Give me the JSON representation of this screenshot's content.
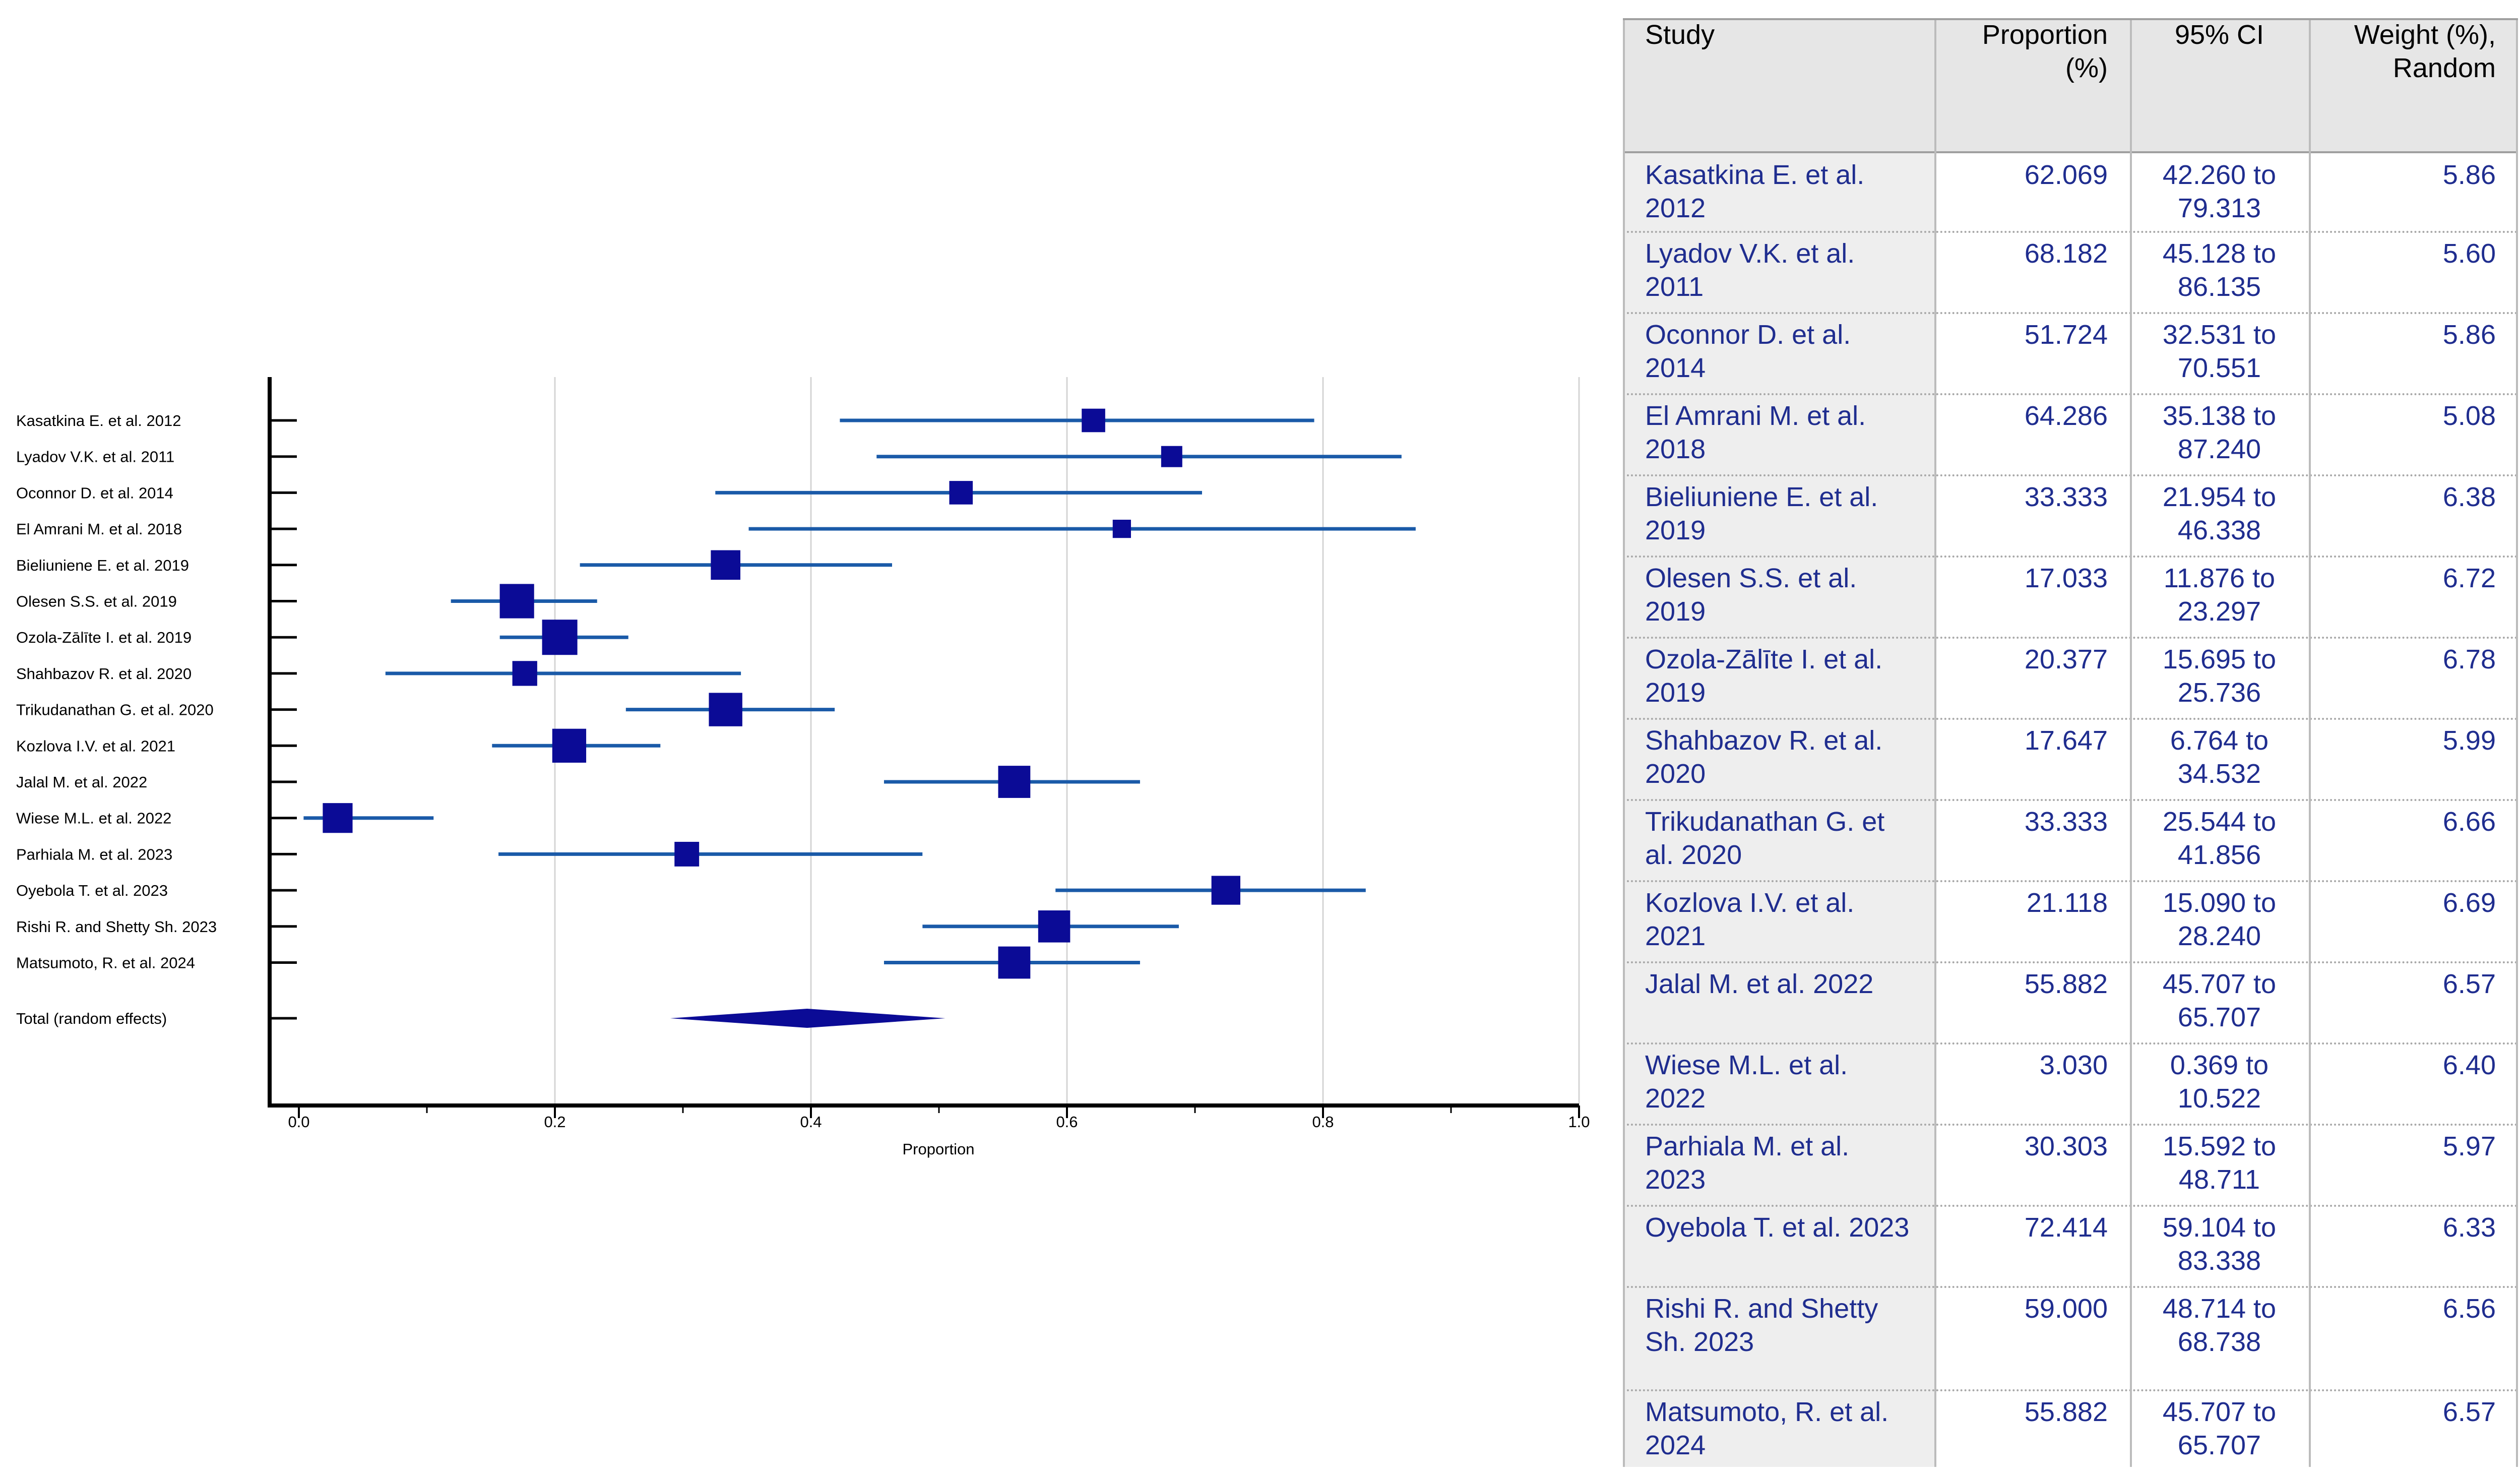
{
  "chart_data": {
    "type": "forest",
    "xlabel": "Proportion",
    "xlim": [
      0,
      1
    ],
    "xticks": [
      "0.0",
      "0.2",
      "0.4",
      "0.6",
      "0.8",
      "1.0"
    ],
    "studies": [
      {
        "label": "Kasatkina E. et al. 2012",
        "est": 0.62069,
        "lo": 0.4226,
        "hi": 0.79313,
        "weight": 5.86
      },
      {
        "label": "Lyadov V.K. et al. 2011",
        "est": 0.68182,
        "lo": 0.45128,
        "hi": 0.86135,
        "weight": 5.6
      },
      {
        "label": "Oconnor D. et al. 2014",
        "est": 0.51724,
        "lo": 0.32531,
        "hi": 0.70551,
        "weight": 5.86
      },
      {
        "label": "El Amrani M. et al. 2018",
        "est": 0.64286,
        "lo": 0.35138,
        "hi": 0.8724,
        "weight": 5.08
      },
      {
        "label": "Bieliuniene E. et al. 2019",
        "est": 0.33333,
        "lo": 0.21954,
        "hi": 0.46338,
        "weight": 6.38
      },
      {
        "label": "Olesen S.S. et al. 2019",
        "est": 0.17033,
        "lo": 0.11876,
        "hi": 0.23297,
        "weight": 6.72
      },
      {
        "label": "Ozola-Zālīte I. et al. 2019",
        "est": 0.20377,
        "lo": 0.15695,
        "hi": 0.25736,
        "weight": 6.78
      },
      {
        "label": "Shahbazov R. et al. 2020",
        "est": 0.17647,
        "lo": 0.06764,
        "hi": 0.34532,
        "weight": 5.99
      },
      {
        "label": "Trikudanathan G. et al. 2020",
        "est": 0.33333,
        "lo": 0.25544,
        "hi": 0.41856,
        "weight": 6.66
      },
      {
        "label": "Kozlova I.V. et al. 2021",
        "est": 0.21118,
        "lo": 0.1509,
        "hi": 0.2824,
        "weight": 6.69
      },
      {
        "label": "Jalal M. et al. 2022",
        "est": 0.55882,
        "lo": 0.45707,
        "hi": 0.65707,
        "weight": 6.57
      },
      {
        "label": "Wiese M.L. et al. 2022",
        "est": 0.0303,
        "lo": 0.00369,
        "hi": 0.10522,
        "weight": 6.4
      },
      {
        "label": "Parhiala M. et al. 2023",
        "est": 0.30303,
        "lo": 0.15592,
        "hi": 0.48711,
        "weight": 5.97
      },
      {
        "label": "Oyebola T. et al. 2023",
        "est": 0.72414,
        "lo": 0.59104,
        "hi": 0.83338,
        "weight": 6.33
      },
      {
        "label": "Rishi R. and Shetty Sh. 2023",
        "est": 0.59,
        "lo": 0.48714,
        "hi": 0.68738,
        "weight": 6.56
      },
      {
        "label": "Matsumoto, R. et al. 2024",
        "est": 0.55882,
        "lo": 0.45707,
        "hi": 0.65707,
        "weight": 6.57
      }
    ],
    "total": {
      "label": "Total (random effects)",
      "est": 0.397,
      "lo": 0.29,
      "hi": 0.505
    }
  },
  "table": {
    "headers": [
      "Study",
      "Proportion (%)",
      "95% CI",
      "Weight (%), Random"
    ],
    "rows": [
      {
        "study": "Kasatkina E. et al. 2012",
        "proportion": "62.069",
        "ci": "42.260 to 79.313",
        "weight": "5.86"
      },
      {
        "study": "Lyadov V.K. et al. 2011",
        "proportion": "68.182",
        "ci": "45.128 to 86.135",
        "weight": "5.60"
      },
      {
        "study": "Oconnor D. et al. 2014",
        "proportion": "51.724",
        "ci": "32.531 to 70.551",
        "weight": "5.86"
      },
      {
        "study": "El Amrani M. et al. 2018",
        "proportion": "64.286",
        "ci": "35.138 to 87.240",
        "weight": "5.08"
      },
      {
        "study": "Bieliuniene E. et al. 2019",
        "proportion": "33.333",
        "ci": "21.954 to 46.338",
        "weight": "6.38"
      },
      {
        "study": "Olesen S.S. et al. 2019",
        "proportion": "17.033",
        "ci": "11.876 to 23.297",
        "weight": "6.72"
      },
      {
        "study": "Ozola-Zālīte I. et al. 2019",
        "proportion": "20.377",
        "ci": "15.695 to 25.736",
        "weight": "6.78"
      },
      {
        "study": "Shahbazov R. et al. 2020",
        "proportion": "17.647",
        "ci": "6.764 to 34.532",
        "weight": "5.99"
      },
      {
        "study": "Trikudanathan G. et al. 2020",
        "proportion": "33.333",
        "ci": "25.544 to 41.856",
        "weight": "6.66"
      },
      {
        "study": "Kozlova I.V. et al. 2021",
        "proportion": "21.118",
        "ci": "15.090 to 28.240",
        "weight": "6.69"
      },
      {
        "study": "Jalal M. et al. 2022",
        "proportion": "55.882",
        "ci": "45.707 to 65.707",
        "weight": "6.57"
      },
      {
        "study": "Wiese M.L. et al. 2022",
        "proportion": "3.030",
        "ci": "0.369 to 10.522",
        "weight": "6.40"
      },
      {
        "study": "Parhiala M. et al. 2023",
        "proportion": "30.303",
        "ci": "15.592 to 48.711",
        "weight": "5.97"
      },
      {
        "study": "Oyebola T. et al. 2023",
        "proportion": "72.414",
        "ci": "59.104 to 83.338",
        "weight": "6.33"
      },
      {
        "study": "Rishi R. and Shetty Sh. 2023",
        "proportion": "59.000",
        "ci": "48.714 to 68.738",
        "weight": "6.56"
      },
      {
        "study": "Matsumoto, R. et al. 2024",
        "proportion": "55.882",
        "ci": "45.707 to 65.707",
        "weight": "6.57"
      }
    ]
  },
  "colors": {
    "marker": "#0b0b96",
    "ci_line": "#1a5aa8",
    "grid": "#d4d4d4",
    "axis": "#000000",
    "table_text": "#1f2d8f",
    "header_bg": "#e6e6e6",
    "first_col_bg": "#eeeeee",
    "header_border": "#a0a0a0"
  }
}
